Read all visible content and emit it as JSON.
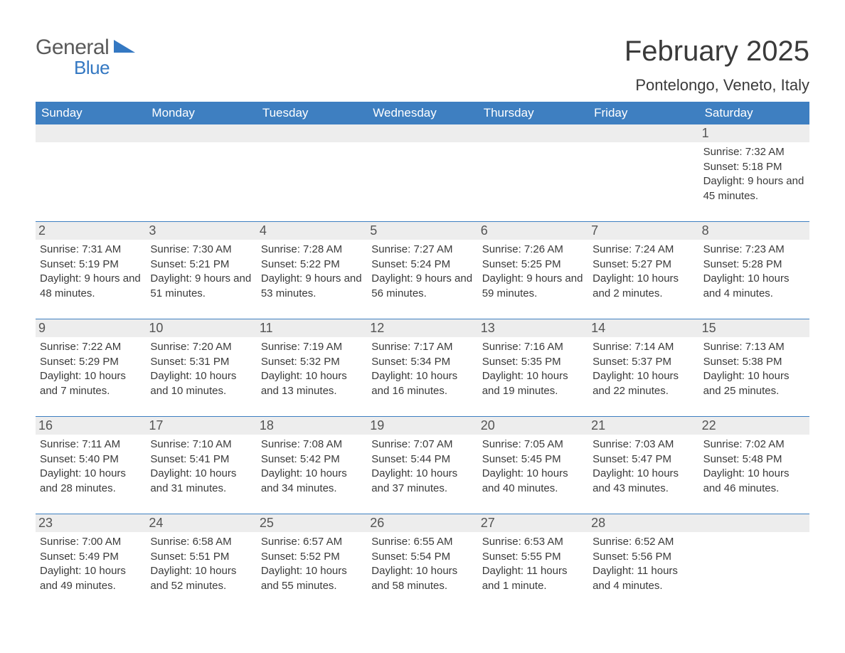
{
  "brand": {
    "general": "General",
    "blue": "Blue"
  },
  "title": "February 2025",
  "location": "Pontelongo, Veneto, Italy",
  "colors": {
    "header_bg": "#3e7fc1",
    "header_text": "#ffffff",
    "daynum_bg": "#ededed",
    "border": "#3e7fc1",
    "body_text": "#3a3a3a",
    "logo_gray": "#5a5a5a",
    "logo_blue": "#3478c2"
  },
  "weekdays": [
    "Sunday",
    "Monday",
    "Tuesday",
    "Wednesday",
    "Thursday",
    "Friday",
    "Saturday"
  ],
  "weeks": [
    [
      null,
      null,
      null,
      null,
      null,
      null,
      {
        "n": "1",
        "sr": "7:32 AM",
        "ss": "5:18 PM",
        "dl": "9 hours and 45 minutes."
      }
    ],
    [
      {
        "n": "2",
        "sr": "7:31 AM",
        "ss": "5:19 PM",
        "dl": "9 hours and 48 minutes."
      },
      {
        "n": "3",
        "sr": "7:30 AM",
        "ss": "5:21 PM",
        "dl": "9 hours and 51 minutes."
      },
      {
        "n": "4",
        "sr": "7:28 AM",
        "ss": "5:22 PM",
        "dl": "9 hours and 53 minutes."
      },
      {
        "n": "5",
        "sr": "7:27 AM",
        "ss": "5:24 PM",
        "dl": "9 hours and 56 minutes."
      },
      {
        "n": "6",
        "sr": "7:26 AM",
        "ss": "5:25 PM",
        "dl": "9 hours and 59 minutes."
      },
      {
        "n": "7",
        "sr": "7:24 AM",
        "ss": "5:27 PM",
        "dl": "10 hours and 2 minutes."
      },
      {
        "n": "8",
        "sr": "7:23 AM",
        "ss": "5:28 PM",
        "dl": "10 hours and 4 minutes."
      }
    ],
    [
      {
        "n": "9",
        "sr": "7:22 AM",
        "ss": "5:29 PM",
        "dl": "10 hours and 7 minutes."
      },
      {
        "n": "10",
        "sr": "7:20 AM",
        "ss": "5:31 PM",
        "dl": "10 hours and 10 minutes."
      },
      {
        "n": "11",
        "sr": "7:19 AM",
        "ss": "5:32 PM",
        "dl": "10 hours and 13 minutes."
      },
      {
        "n": "12",
        "sr": "7:17 AM",
        "ss": "5:34 PM",
        "dl": "10 hours and 16 minutes."
      },
      {
        "n": "13",
        "sr": "7:16 AM",
        "ss": "5:35 PM",
        "dl": "10 hours and 19 minutes."
      },
      {
        "n": "14",
        "sr": "7:14 AM",
        "ss": "5:37 PM",
        "dl": "10 hours and 22 minutes."
      },
      {
        "n": "15",
        "sr": "7:13 AM",
        "ss": "5:38 PM",
        "dl": "10 hours and 25 minutes."
      }
    ],
    [
      {
        "n": "16",
        "sr": "7:11 AM",
        "ss": "5:40 PM",
        "dl": "10 hours and 28 minutes."
      },
      {
        "n": "17",
        "sr": "7:10 AM",
        "ss": "5:41 PM",
        "dl": "10 hours and 31 minutes."
      },
      {
        "n": "18",
        "sr": "7:08 AM",
        "ss": "5:42 PM",
        "dl": "10 hours and 34 minutes."
      },
      {
        "n": "19",
        "sr": "7:07 AM",
        "ss": "5:44 PM",
        "dl": "10 hours and 37 minutes."
      },
      {
        "n": "20",
        "sr": "7:05 AM",
        "ss": "5:45 PM",
        "dl": "10 hours and 40 minutes."
      },
      {
        "n": "21",
        "sr": "7:03 AM",
        "ss": "5:47 PM",
        "dl": "10 hours and 43 minutes."
      },
      {
        "n": "22",
        "sr": "7:02 AM",
        "ss": "5:48 PM",
        "dl": "10 hours and 46 minutes."
      }
    ],
    [
      {
        "n": "23",
        "sr": "7:00 AM",
        "ss": "5:49 PM",
        "dl": "10 hours and 49 minutes."
      },
      {
        "n": "24",
        "sr": "6:58 AM",
        "ss": "5:51 PM",
        "dl": "10 hours and 52 minutes."
      },
      {
        "n": "25",
        "sr": "6:57 AM",
        "ss": "5:52 PM",
        "dl": "10 hours and 55 minutes."
      },
      {
        "n": "26",
        "sr": "6:55 AM",
        "ss": "5:54 PM",
        "dl": "10 hours and 58 minutes."
      },
      {
        "n": "27",
        "sr": "6:53 AM",
        "ss": "5:55 PM",
        "dl": "11 hours and 1 minute."
      },
      {
        "n": "28",
        "sr": "6:52 AM",
        "ss": "5:56 PM",
        "dl": "11 hours and 4 minutes."
      },
      null
    ]
  ],
  "labels": {
    "sunrise": "Sunrise: ",
    "sunset": "Sunset: ",
    "daylight": "Daylight: "
  }
}
